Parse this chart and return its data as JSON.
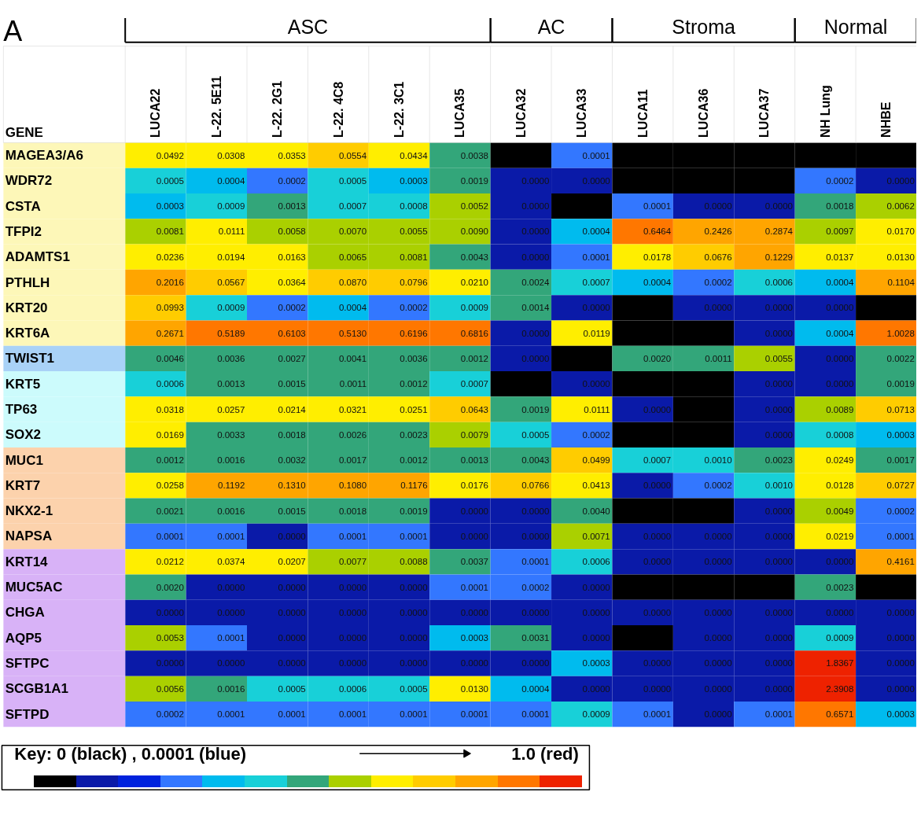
{
  "chart_data": {
    "type": "heatmap",
    "categories": [
      "LUCA22",
      "L-22. 5E11",
      "L-22. 2G1",
      "L-22. 4C8",
      "L-22. 3C1",
      "LUCA35",
      "LUCA32",
      "LUCA33",
      "LUCA11",
      "LUCA36",
      "LUCA37",
      "NH Lung",
      "NHBE"
    ],
    "y_categories": [
      "MAGEA3/A6",
      "WDR72",
      "CSTA",
      "TFPI2",
      "ADAMTS1",
      "PTHLH",
      "KRT20",
      "KRT6A",
      "TWIST1",
      "KRT5",
      "TP63",
      "SOX2",
      "MUC1",
      "KRT7",
      "NKX2-1",
      "NAPSA",
      "KRT14",
      "MUC5AC",
      "CHGA",
      "AQP5",
      "SFTPC",
      "SCGB1A1",
      "SFTPD"
    ],
    "cells": [
      [
        0.0492,
        0.0308,
        0.0353,
        0.0554,
        0.0434,
        0.0038,
        null,
        0.0001,
        null,
        null,
        null,
        null,
        null
      ],
      [
        0.0005,
        0.0004,
        0.0002,
        0.0005,
        0.0003,
        0.0019,
        0.0,
        0.0,
        null,
        null,
        null,
        0.0002,
        0.0
      ],
      [
        0.0003,
        0.0009,
        0.0013,
        0.0007,
        0.0008,
        0.0052,
        0.0,
        null,
        0.0001,
        0.0,
        0.0,
        0.0018,
        0.0062
      ],
      [
        0.0081,
        0.0111,
        0.0058,
        0.007,
        0.0055,
        0.009,
        0.0,
        0.0004,
        0.6464,
        0.2426,
        0.2874,
        0.0097,
        0.017
      ],
      [
        0.0236,
        0.0194,
        0.0163,
        0.0065,
        0.0081,
        0.0043,
        0.0,
        0.0001,
        0.0178,
        0.0676,
        0.1229,
        0.0137,
        0.013
      ],
      [
        0.2016,
        0.0567,
        0.0364,
        0.087,
        0.0796,
        0.021,
        0.0024,
        0.0007,
        0.0004,
        0.0002,
        0.0006,
        0.0004,
        0.1104
      ],
      [
        0.0993,
        0.0009,
        0.0002,
        0.0004,
        0.0002,
        0.0009,
        0.0014,
        0.0,
        null,
        0.0,
        0.0,
        0.0,
        null
      ],
      [
        0.2671,
        0.5189,
        0.6103,
        0.513,
        0.6196,
        0.6816,
        0.0,
        0.0119,
        null,
        null,
        0.0,
        0.0004,
        1.0028
      ],
      [
        0.0046,
        0.0036,
        0.0027,
        0.0041,
        0.0036,
        0.0012,
        0.0,
        null,
        0.002,
        0.0011,
        0.0055,
        0.0,
        0.0022
      ],
      [
        0.0006,
        0.0013,
        0.0015,
        0.0011,
        0.0012,
        0.0007,
        null,
        0.0,
        null,
        null,
        0.0,
        0.0,
        0.0019
      ],
      [
        0.0318,
        0.0257,
        0.0214,
        0.0321,
        0.0251,
        0.0643,
        0.0019,
        0.0111,
        0.0,
        null,
        0.0,
        0.0089,
        0.0713
      ],
      [
        0.0169,
        0.0033,
        0.0018,
        0.0026,
        0.0023,
        0.0079,
        0.0005,
        0.0002,
        null,
        null,
        0.0,
        0.0008,
        0.0003
      ],
      [
        0.0012,
        0.0016,
        0.0032,
        0.0017,
        0.0012,
        0.0013,
        0.0043,
        0.0499,
        0.0007,
        0.001,
        0.0023,
        0.0249,
        0.0017
      ],
      [
        0.0258,
        0.1192,
        0.131,
        0.108,
        0.1176,
        0.0176,
        0.0766,
        0.0413,
        0.0,
        0.0002,
        0.001,
        0.0128,
        0.0727
      ],
      [
        0.0021,
        0.0016,
        0.0015,
        0.0018,
        0.0019,
        0.0,
        0.0,
        0.004,
        null,
        null,
        0.0,
        0.0049,
        0.0002
      ],
      [
        0.0001,
        0.0001,
        0.0,
        0.0001,
        0.0001,
        0.0,
        0.0,
        0.0071,
        0.0,
        0.0,
        0.0,
        0.0219,
        0.0001
      ],
      [
        0.0212,
        0.0374,
        0.0207,
        0.0077,
        0.0088,
        0.0037,
        0.0001,
        0.0006,
        0.0,
        0.0,
        0.0,
        0.0,
        0.4161
      ],
      [
        0.002,
        0.0,
        0.0,
        0.0,
        0.0,
        0.0001,
        0.0002,
        0.0,
        null,
        null,
        null,
        0.0023,
        null
      ],
      [
        0.0,
        0.0,
        0.0,
        0.0,
        0.0,
        0.0,
        0.0,
        0.0,
        0.0,
        0.0,
        0.0,
        0.0,
        0.0
      ],
      [
        0.0053,
        0.0001,
        0.0,
        0.0,
        0.0,
        0.0003,
        0.0031,
        0.0,
        null,
        0.0,
        0.0,
        0.0009,
        0.0
      ],
      [
        0.0,
        0.0,
        0.0,
        0.0,
        0.0,
        0.0,
        0.0,
        0.0003,
        0.0,
        0.0,
        0.0,
        1.8367,
        0.0
      ],
      [
        0.0056,
        0.0016,
        0.0005,
        0.0006,
        0.0005,
        0.013,
        0.0004,
        0.0,
        0.0,
        0.0,
        0.0,
        2.3908,
        0.0
      ],
      [
        0.0002,
        0.0001,
        0.0001,
        0.0001,
        0.0001,
        0.0001,
        0.0001,
        0.0009,
        0.0001,
        0.0,
        0.0001,
        0.6571,
        0.0003
      ]
    ],
    "cell_labels": [
      [
        "0.0492",
        "0.0308",
        "0.0353",
        "0.0554",
        "0.0434",
        "0.0038",
        null,
        "0.0001",
        null,
        null,
        null,
        null,
        null
      ],
      [
        "0.0005",
        "0.0004",
        "0.0002",
        "0.0005",
        "0.0003",
        "0.0019",
        "0.0000",
        "0.0000",
        null,
        null,
        null,
        "0.0002",
        "0.0000"
      ],
      [
        "0.0003",
        "0.0009",
        "0.0013",
        "0.0007",
        "0.0008",
        "0.0052",
        "0.0000",
        null,
        "0.0001",
        "0.0000",
        "0.0000",
        "0.0018",
        "0.0062"
      ],
      [
        "0.0081",
        "0.0111",
        "0.0058",
        "0.0070",
        "0.0055",
        "0.0090",
        "0.0000",
        "0.0004",
        "0.6464",
        "0.2426",
        "0.2874",
        "0.0097",
        "0.0170"
      ],
      [
        "0.0236",
        "0.0194",
        "0.0163",
        "0.0065",
        "0.0081",
        "0.0043",
        "0.0000",
        "0.0001",
        "0.0178",
        "0.0676",
        "0.1229",
        "0.0137",
        "0.0130"
      ],
      [
        "0.2016",
        "0.0567",
        "0.0364",
        "0.0870",
        "0.0796",
        "0.0210",
        "0.0024",
        "0.0007",
        "0.0004",
        "0.0002",
        "0.0006",
        "0.0004",
        "0.1104"
      ],
      [
        "0.0993",
        "0.0009",
        "0.0002",
        "0.0004",
        "0.0002",
        "0.0009",
        "0.0014",
        "0.0000",
        null,
        "0.0000",
        "0.0000",
        "0.0000",
        null
      ],
      [
        "0.2671",
        "0.5189",
        "0.6103",
        "0.5130",
        "0.6196",
        "0.6816",
        "0.0000",
        "0.0119",
        null,
        null,
        "0.0000",
        "0.0004",
        "1.0028"
      ],
      [
        "0.0046",
        "0.0036",
        "0.0027",
        "0.0041",
        "0.0036",
        "0.0012",
        "0.0000",
        null,
        "0.0020",
        "0.0011",
        "0.0055",
        "0.0000",
        "0.0022"
      ],
      [
        "0.0006",
        "0.0013",
        "0.0015",
        "0.0011",
        "0.0012",
        "0.0007",
        null,
        "0.0000",
        null,
        null,
        "0.0000",
        "0.0000",
        "0.0019"
      ],
      [
        "0.0318",
        "0.0257",
        "0.0214",
        "0.0321",
        "0.0251",
        "0.0643",
        "0.0019",
        "0.0111",
        "0.0000",
        null,
        "0.0000",
        "0.0089",
        "0.0713"
      ],
      [
        "0.0169",
        "0.0033",
        "0.0018",
        "0.0026",
        "0.0023",
        "0.0079",
        "0.0005",
        "0.0002",
        null,
        null,
        "0.0000",
        "0.0008",
        "0.0003"
      ],
      [
        "0.0012",
        "0.0016",
        "0.0032",
        "0.0017",
        "0.0012",
        "0.0013",
        "0.0043",
        "0.0499",
        "0.0007",
        "0.0010",
        "0.0023",
        "0.0249",
        "0.0017"
      ],
      [
        "0.0258",
        "0.1192",
        "0.1310",
        "0.1080",
        "0.1176",
        "0.0176",
        "0.0766",
        "0.0413",
        "0.0000",
        "0.0002",
        "0.0010",
        "0.0128",
        "0.0727"
      ],
      [
        "0.0021",
        "0.0016",
        "0.0015",
        "0.0018",
        "0.0019",
        "0.0000",
        "0.0000",
        "0.0040",
        null,
        null,
        "0.0000",
        "0.0049",
        "0.0002"
      ],
      [
        "0.0001",
        "0.0001",
        "0.0000",
        "0.0001",
        "0.0001",
        "0.0000",
        "0.0000",
        "0.0071",
        "0.0000",
        "0.0000",
        "0.0000",
        "0.0219",
        "0.0001"
      ],
      [
        "0.0212",
        "0.0374",
        "0.0207",
        "0.0077",
        "0.0088",
        "0.0037",
        "0.0001",
        "0.0006",
        "0.0000",
        "0.0000",
        "0.0000",
        "0.0000",
        "0.4161"
      ],
      [
        "0.0020",
        "0.0000",
        "0.0000",
        "0.0000",
        "0.0000",
        "0.0001",
        "0.0002",
        "0.0000",
        null,
        null,
        null,
        "0.0023",
        null
      ],
      [
        "0.0000",
        "0.0000",
        "0.0000",
        "0.0000",
        "0.0000",
        "0.0000",
        "0.0000",
        "0.0000",
        "0.0000",
        "0.0000",
        "0.0000",
        "0.0000",
        "0.0000"
      ],
      [
        "0.0053",
        "0.0001",
        "0.0000",
        "0.0000",
        "0.0000",
        "0.0003",
        "0.0031",
        "0.0000",
        null,
        "0.0000",
        "0.0000",
        "0.0009",
        "0.0000"
      ],
      [
        "0.0000",
        "0.0000",
        "0.0000",
        "0.0000",
        "0.0000",
        "0.0000",
        "0.0000",
        "0.0003",
        "0.0000",
        "0.0000",
        "0.0000",
        "1.8367",
        "0.0000"
      ],
      [
        "0.0056",
        "0.0016",
        "0.0005",
        "0.0006",
        "0.0005",
        "0.0130",
        "0.0004",
        "0.0000",
        "0.0000",
        "0.0000",
        "0.0000",
        "2.3908",
        "0.0000"
      ],
      [
        "0.0002",
        "0.0001",
        "0.0001",
        "0.0001",
        "0.0001",
        "0.0001",
        "0.0001",
        "0.0009",
        "0.0001",
        "0.0000",
        "0.0001",
        "0.6571",
        "0.0003"
      ]
    ],
    "annotations": [
      "A",
      "ASC",
      "AC",
      "Stroma",
      "Normal",
      "GENE",
      "Key: 0 (black) , 0.0001 (blue)",
      "1.0 (red)"
    ]
  }
}
